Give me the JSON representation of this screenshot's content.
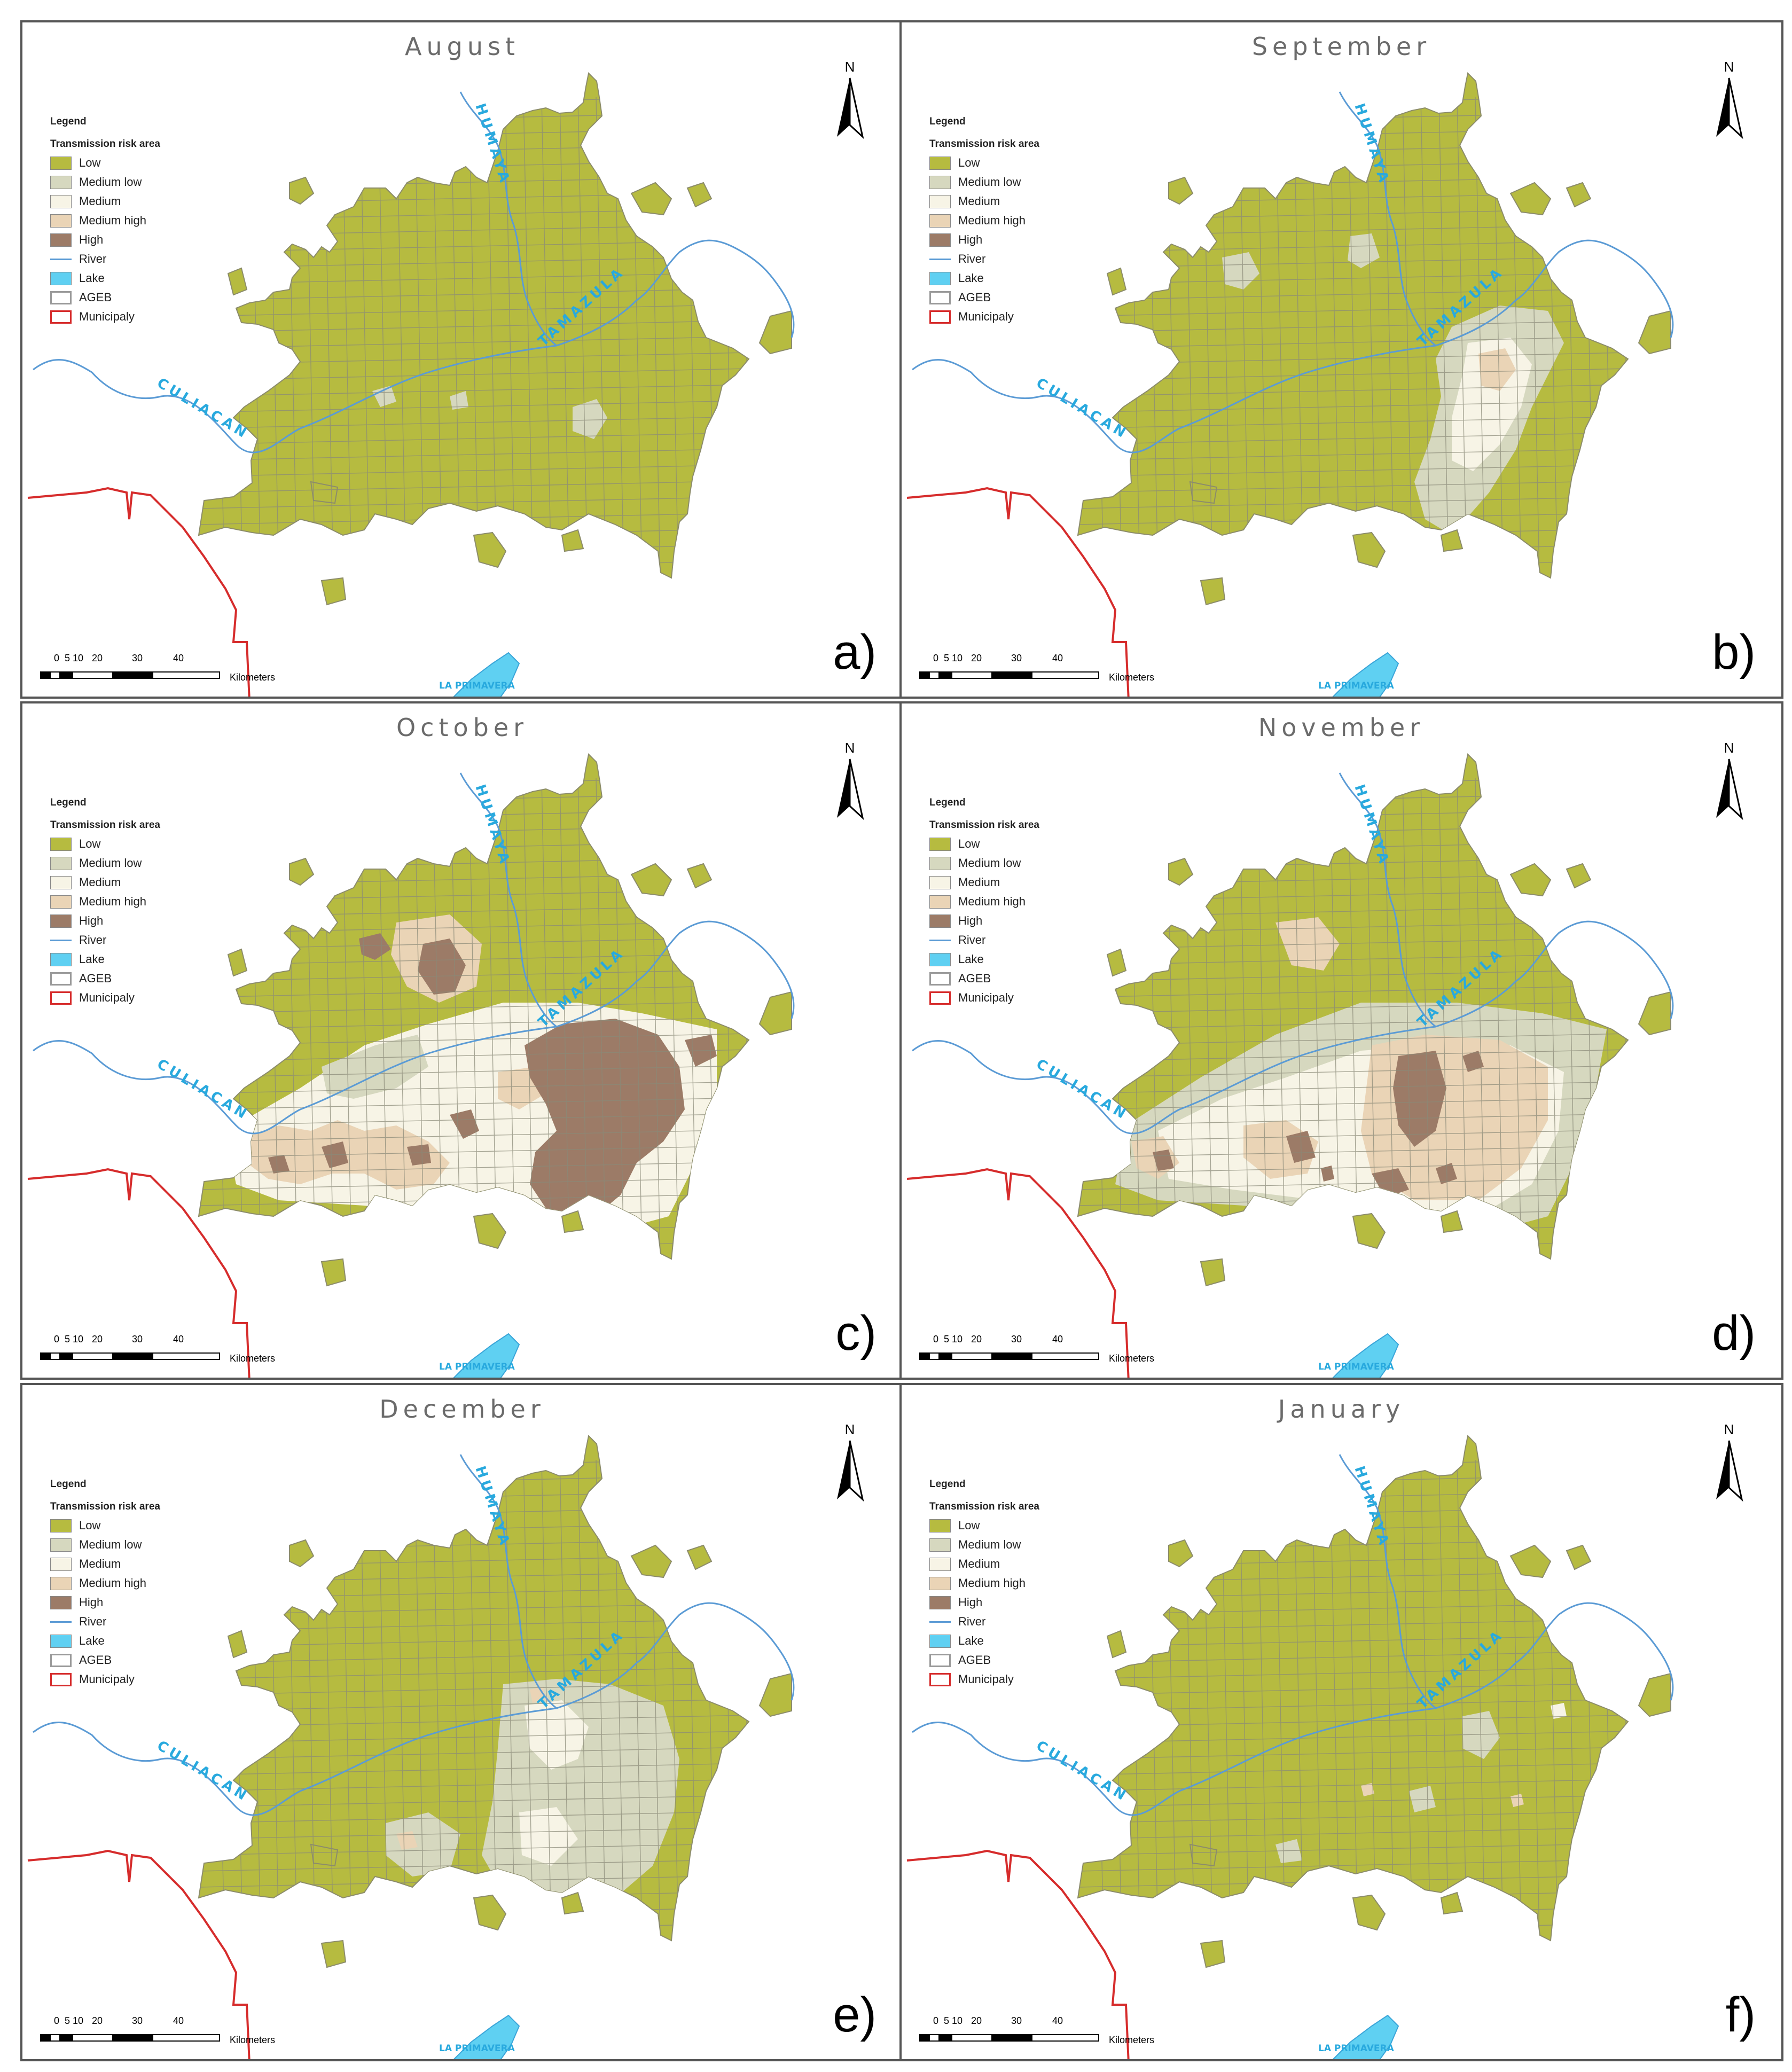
{
  "figure": {
    "panels": [
      {
        "id": "a",
        "month": "August",
        "label": "a)",
        "risk_pattern": "low"
      },
      {
        "id": "b",
        "month": "September",
        "label": "b)",
        "risk_pattern": "medium-east"
      },
      {
        "id": "c",
        "month": "October",
        "label": "c)",
        "risk_pattern": "high-east"
      },
      {
        "id": "d",
        "month": "November",
        "label": "d)",
        "risk_pattern": "high-mixed"
      },
      {
        "id": "e",
        "month": "December",
        "label": "e)",
        "risk_pattern": "medium-low-center"
      },
      {
        "id": "f",
        "month": "January",
        "label": "f)",
        "risk_pattern": "low-spots"
      }
    ],
    "legend": {
      "title": "Legend",
      "subtitle": "Transmission risk area",
      "items": [
        {
          "label": "Low",
          "kind": "fill",
          "color": "#b6bb40"
        },
        {
          "label": "Medium low",
          "kind": "fill",
          "color": "#d6d8bf"
        },
        {
          "label": "Medium",
          "kind": "fill",
          "color": "#f7f4e6"
        },
        {
          "label": "Medium high",
          "kind": "fill",
          "color": "#ead4b6"
        },
        {
          "label": "High",
          "kind": "fill",
          "color": "#9c7b67"
        },
        {
          "label": "River",
          "kind": "line",
          "color": "#5b9bd5"
        },
        {
          "label": "Lake",
          "kind": "fill",
          "color": "#5fd0f2"
        },
        {
          "label": "AGEB",
          "kind": "outline",
          "color": "#9a9a9a"
        },
        {
          "label": "Municipaly",
          "kind": "outline",
          "color": "#d62c2c"
        }
      ]
    },
    "north_label": "N",
    "scale": {
      "ticks": [
        "0",
        "5",
        "10",
        "20",
        "30",
        "40"
      ],
      "unit": "Kilometers"
    },
    "river_labels": {
      "humaya": "HUMAYA",
      "tamazula": "TAMAZULA",
      "culiacan": "CULIACAN"
    },
    "lake_label": "LA PRIMAVERA",
    "colors": {
      "river": "#5b9bd5",
      "municipal_boundary": "#d62c2c",
      "border": "#555555",
      "label_blue": "#28a9de"
    }
  }
}
